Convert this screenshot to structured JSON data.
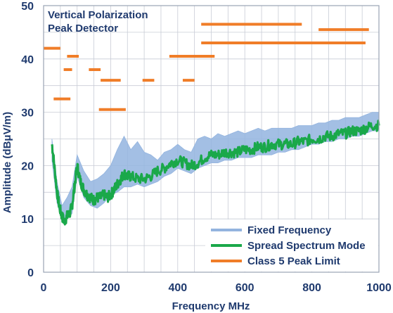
{
  "chart_data": {
    "type": "line",
    "title": "Vertical Polarization",
    "subtitle": "Peak Detector",
    "xlabel": "Frequency MHz",
    "ylabel": "Amplitude (dBμV/m)",
    "xlim": [
      0,
      1000
    ],
    "ylim": [
      0,
      50
    ],
    "x_ticks": [
      0,
      200,
      400,
      600,
      800,
      1000
    ],
    "y_ticks": [
      0,
      10,
      20,
      30,
      40,
      50
    ],
    "grid": true,
    "legend_position": "bottom-right",
    "series": [
      {
        "name": "Fixed Frequency",
        "color": "#93b4df",
        "kind": "band",
        "x": [
          25,
          40,
          55,
          70,
          85,
          100,
          120,
          140,
          160,
          180,
          200,
          220,
          240,
          260,
          280,
          300,
          320,
          340,
          360,
          380,
          400,
          420,
          440,
          460,
          480,
          500,
          520,
          540,
          560,
          580,
          600,
          620,
          640,
          660,
          680,
          700,
          720,
          740,
          760,
          780,
          800,
          820,
          840,
          860,
          880,
          900,
          920,
          940,
          960,
          980,
          1000
        ],
        "low": [
          21,
          13,
          9.5,
          10,
          11,
          18,
          14,
          12.5,
          12,
          13,
          14.5,
          15,
          16,
          16,
          16.5,
          16,
          16.5,
          17,
          18,
          18.5,
          19.5,
          19,
          18.5,
          19.5,
          20,
          20.5,
          20.5,
          21,
          21,
          21.5,
          21.5,
          21.5,
          22,
          22,
          22,
          22.5,
          22.5,
          23,
          23,
          23.5,
          24,
          24,
          24.5,
          24.5,
          25,
          25,
          25.5,
          25.5,
          26,
          26.5,
          26.5
        ],
        "high": [
          25,
          17,
          12.5,
          14,
          16,
          22,
          19,
          17,
          17.5,
          18.5,
          20,
          23,
          25.5,
          23,
          24.5,
          22.5,
          22,
          21,
          22.5,
          23,
          24,
          23,
          22.5,
          25,
          25.5,
          25,
          26,
          25.5,
          26,
          26.5,
          26,
          26.5,
          27,
          26.5,
          27,
          27,
          27,
          27,
          27.5,
          27.5,
          27.5,
          28,
          28,
          28.5,
          28.5,
          29,
          29,
          29,
          29.5,
          30,
          30
        ]
      },
      {
        "name": "Spread Spectrum Mode",
        "color": "#1aa84a",
        "kind": "line",
        "x": [
          25,
          32,
          40,
          48,
          55,
          62,
          70,
          78,
          85,
          92,
          100,
          110,
          120,
          130,
          140,
          150,
          160,
          170,
          180,
          190,
          200,
          210,
          220,
          230,
          240,
          250,
          260,
          280,
          300,
          320,
          340,
          360,
          380,
          400,
          420,
          440,
          460,
          480,
          500,
          520,
          540,
          560,
          580,
          600,
          620,
          640,
          660,
          680,
          700,
          720,
          740,
          760,
          780,
          800,
          820,
          840,
          860,
          880,
          900,
          920,
          940,
          960,
          980,
          1000
        ],
        "y": [
          24,
          20,
          15,
          12,
          10.5,
          9.5,
          10.5,
          11,
          12.5,
          16,
          20,
          17,
          15.5,
          14.5,
          14,
          13.5,
          14,
          14,
          14.5,
          14,
          14.5,
          15.5,
          16.5,
          17.5,
          18.5,
          18,
          18,
          17.5,
          17.5,
          18,
          19,
          19.5,
          20.5,
          21,
          20.5,
          20,
          20.5,
          21.5,
          22,
          22,
          22.5,
          22.5,
          22.5,
          23,
          23,
          23.5,
          23.5,
          24,
          24,
          24,
          24,
          24.5,
          24.5,
          25,
          25,
          25.5,
          25.5,
          26,
          26,
          26.5,
          26.5,
          27,
          27.5,
          27.5
        ]
      },
      {
        "name": "Class 5 Peak Limit",
        "color": "#f07d28",
        "kind": "segments",
        "segments": [
          {
            "x": [
              0,
              50
            ],
            "y": 42
          },
          {
            "x": [
              70,
              105
            ],
            "y": 40.5
          },
          {
            "x": [
              60,
              85
            ],
            "y": 38
          },
          {
            "x": [
              135,
              170
            ],
            "y": 38
          },
          {
            "x": [
              170,
              230
            ],
            "y": 36
          },
          {
            "x": [
              295,
              330
            ],
            "y": 36
          },
          {
            "x": [
              415,
              450
            ],
            "y": 36
          },
          {
            "x": [
              30,
              80
            ],
            "y": 32.5
          },
          {
            "x": [
              165,
              245
            ],
            "y": 30.5
          },
          {
            "x": [
              375,
              510
            ],
            "y": 40.5
          },
          {
            "x": [
              470,
              960
            ],
            "y": 43
          },
          {
            "x": [
              470,
              770
            ],
            "y": 46.5
          },
          {
            "x": [
              820,
              970
            ],
            "y": 45.5
          }
        ]
      }
    ]
  }
}
